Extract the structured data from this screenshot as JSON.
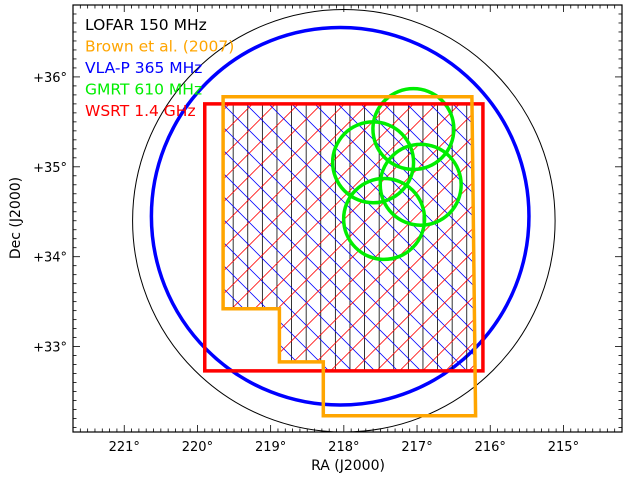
{
  "chart_data": {
    "type": "sky_coverage_map",
    "xlabel": "RA (J2000)",
    "ylabel": "Dec (J2000)",
    "xlim": [
      221.7,
      214.2
    ],
    "ylim": [
      32.05,
      36.8
    ],
    "x_ticks": [
      {
        "value": 221,
        "label": "221°"
      },
      {
        "value": 220,
        "label": "220°"
      },
      {
        "value": 219,
        "label": "219°"
      },
      {
        "value": 218,
        "label": "218°"
      },
      {
        "value": 217,
        "label": "217°"
      },
      {
        "value": 216,
        "label": "216°"
      },
      {
        "value": 215,
        "label": "215°"
      }
    ],
    "y_ticks": [
      {
        "value": 33,
        "label": "+33°"
      },
      {
        "value": 34,
        "label": "+34°"
      },
      {
        "value": 35,
        "label": "+35°"
      },
      {
        "value": 36,
        "label": "+36°"
      }
    ],
    "legend": [
      {
        "label": "LOFAR 150 MHz",
        "color": "#000000"
      },
      {
        "label": "Brown et al. (2007)",
        "color": "#ffa500"
      },
      {
        "label": "VLA-P 365 MHz",
        "color": "#0000ff"
      },
      {
        "label": "GMRT 610 MHz",
        "color": "#00ee00"
      },
      {
        "label": "WSRT 1.4 GHz",
        "color": "#ff0000"
      }
    ],
    "legend_position": "top-left",
    "lofar_circle": {
      "center": [
        218.0,
        34.4
      ],
      "radius_deg": 2.35
    },
    "vla_circle": {
      "center": [
        218.05,
        34.45
      ],
      "radius_deg": 2.1
    },
    "gmrt_circles": [
      {
        "center": [
          217.05,
          35.42
        ],
        "radius_deg": 0.45
      },
      {
        "center": [
          217.6,
          35.05
        ],
        "radius_deg": 0.45
      },
      {
        "center": [
          216.95,
          34.8
        ],
        "radius_deg": 0.45
      },
      {
        "center": [
          217.45,
          34.42
        ],
        "radius_deg": 0.45
      }
    ],
    "wsrt_rect": {
      "ra": [
        219.9,
        216.1
      ],
      "dec": [
        32.73,
        35.7
      ]
    },
    "brown_polygon": [
      [
        219.65,
        35.78
      ],
      [
        216.25,
        35.78
      ],
      [
        216.2,
        32.23
      ],
      [
        218.28,
        32.23
      ],
      [
        218.28,
        32.83
      ],
      [
        218.88,
        32.83
      ],
      [
        218.88,
        33.42
      ],
      [
        219.65,
        33.42
      ]
    ]
  }
}
